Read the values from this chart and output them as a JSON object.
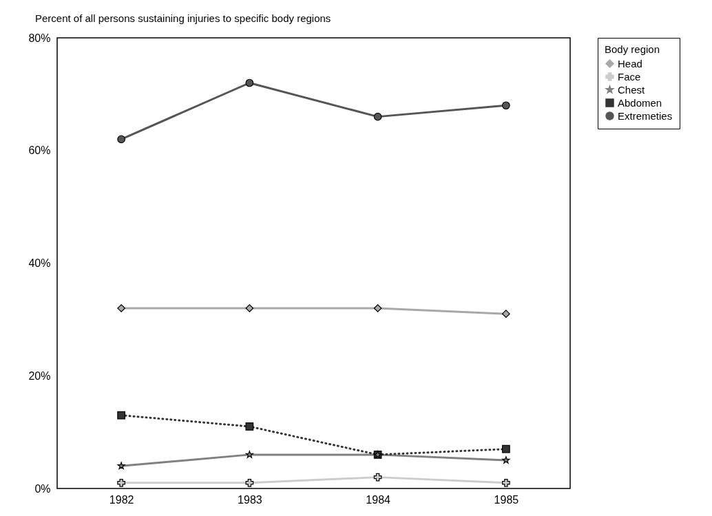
{
  "chart_data": {
    "type": "line",
    "title": "Percent of all persons sustaining injuries to specific body regions",
    "categories": [
      "1982",
      "1983",
      "1984",
      "1985"
    ],
    "legend_title": "Body region",
    "legend": "right",
    "grid": false,
    "ylim": [
      0,
      80
    ],
    "yticks": [
      {
        "value": 0,
        "label": "0%"
      },
      {
        "value": 20,
        "label": "20%"
      },
      {
        "value": 40,
        "label": "40%"
      },
      {
        "value": 60,
        "label": "60%"
      },
      {
        "value": 80,
        "label": "80%"
      }
    ],
    "series": [
      {
        "name": "Head",
        "color": "#a8a8a8",
        "marker": "diamond",
        "line_style": "solid",
        "values": [
          32,
          32,
          32,
          31
        ]
      },
      {
        "name": "Face",
        "color": "#cccccc",
        "marker": "cross",
        "line_style": "solid",
        "values": [
          1,
          1,
          2,
          1
        ]
      },
      {
        "name": "Chest",
        "color": "#808080",
        "marker": "star",
        "line_style": "solid",
        "values": [
          4,
          6,
          6,
          5
        ]
      },
      {
        "name": "Abdomen",
        "color": "#333333",
        "marker": "square",
        "line_style": "dotted",
        "values": [
          13,
          11,
          6,
          7
        ]
      },
      {
        "name": "Extremeties",
        "color": "#555555",
        "marker": "circle",
        "line_style": "solid",
        "values": [
          62,
          72,
          66,
          68
        ]
      }
    ]
  }
}
